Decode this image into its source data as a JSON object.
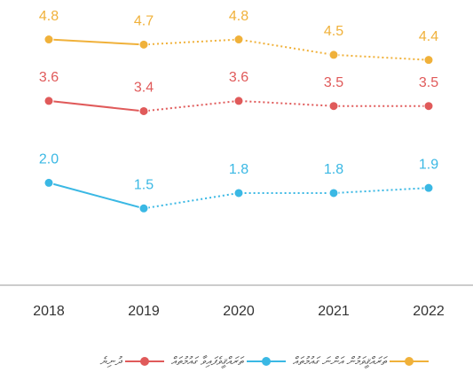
{
  "chart_data": {
    "type": "line",
    "categories": [
      "2018",
      "2019",
      "2020",
      "2021",
      "2022"
    ],
    "series": [
      {
        "name": "ތަރައްޤީވަމުން އަންނަ ގައުމުތައް",
        "color": "#f0b13a",
        "values": [
          4.8,
          4.7,
          4.8,
          4.5,
          4.4
        ],
        "value_labels": [
          "4.8",
          "4.7",
          "4.8",
          "4.5",
          "4.4"
        ]
      },
      {
        "name": "ދުނިޔެ",
        "color": "#e05a5a",
        "values": [
          3.6,
          3.4,
          3.6,
          3.5,
          3.5
        ],
        "value_labels": [
          "3.6",
          "3.4",
          "3.6",
          "3.5",
          "3.5"
        ]
      },
      {
        "name": "ތަރައްޤީވެފައިވާ ގައުމުތައް",
        "color": "#3ab8e4",
        "values": [
          2.0,
          1.5,
          1.8,
          1.8,
          1.9
        ],
        "value_labels": [
          "2.0",
          "1.5",
          "1.8",
          "1.8",
          "1.9"
        ]
      }
    ],
    "ylim": [
      0,
      5
    ]
  }
}
